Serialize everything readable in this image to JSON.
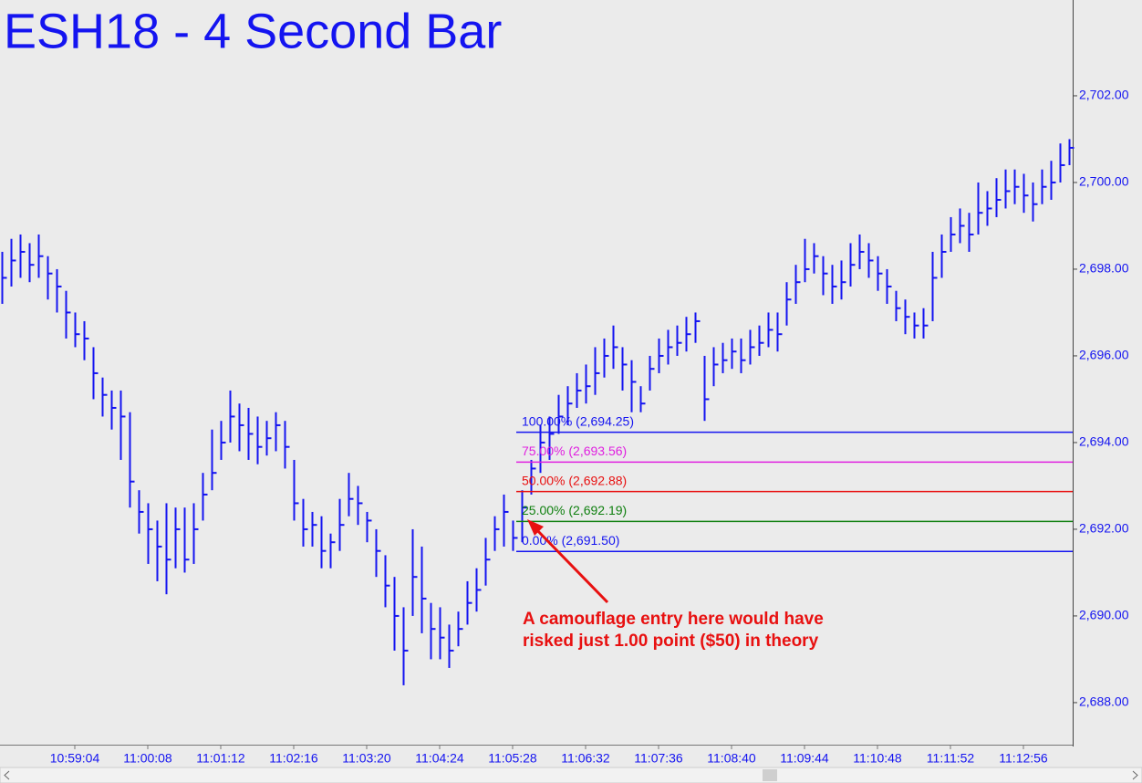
{
  "chart_data": {
    "type": "hlc",
    "title": "ESH18 - 4 Second Bar",
    "color": "#1414f0",
    "categories": [
      null,
      null,
      null,
      null,
      null,
      null,
      null,
      null,
      "10:59:04",
      null,
      null,
      null,
      null,
      null,
      null,
      null,
      "11:00:08",
      null,
      null,
      null,
      null,
      null,
      null,
      null,
      "11:01:12",
      null,
      null,
      null,
      null,
      null,
      null,
      null,
      "11:02:16",
      null,
      null,
      null,
      null,
      null,
      null,
      null,
      "11:03:20",
      null,
      null,
      null,
      null,
      null,
      null,
      null,
      "11:04:24",
      null,
      null,
      null,
      null,
      null,
      null,
      null,
      "11:05:28",
      null,
      null,
      null,
      null,
      null,
      null,
      null,
      "11:06:32",
      null,
      null,
      null,
      null,
      null,
      null,
      null,
      "11:07:36",
      null,
      null,
      null,
      null,
      null,
      null,
      null,
      "11:08:40",
      null,
      null,
      null,
      null,
      null,
      null,
      null,
      "11:09:44",
      null,
      null,
      null,
      null,
      null,
      null,
      null,
      "11:10:48",
      null,
      null,
      null,
      null,
      null,
      null,
      null,
      "11:11:52",
      null,
      null,
      null,
      null,
      null,
      null,
      null,
      "11:12:56",
      null,
      null,
      null,
      null,
      null
    ],
    "high": [
      2698.4,
      2698.7,
      2698.8,
      2698.6,
      2698.8,
      2698.3,
      2698.0,
      2697.5,
      2697.0,
      2696.8,
      2696.2,
      2695.5,
      2695.2,
      2695.2,
      2694.7,
      2692.9,
      2692.6,
      2692.2,
      2692.6,
      2692.5,
      2692.5,
      2692.6,
      2693.3,
      2694.3,
      2694.5,
      2695.2,
      2694.9,
      2694.8,
      2694.6,
      2694.5,
      2694.7,
      2694.5,
      2693.6,
      2692.7,
      2692.4,
      2692.3,
      2691.9,
      2692.7,
      2693.3,
      2693.0,
      2692.4,
      2692.0,
      2691.4,
      2690.9,
      2690.2,
      2692.0,
      2691.6,
      2690.3,
      2690.2,
      2689.8,
      2690.1,
      2690.8,
      2691.1,
      2691.8,
      2692.3,
      2692.8,
      2692.2,
      2692.9,
      2693.6,
      2694.4,
      2694.6,
      2695.1,
      2695.3,
      2695.6,
      2695.8,
      2696.2,
      2696.4,
      2696.7,
      2696.2,
      2695.9,
      2695.3,
      2696.0,
      2696.4,
      2696.6,
      2696.7,
      2696.9,
      2697.0,
      2696.0,
      2696.2,
      2696.3,
      2696.4,
      2696.4,
      2696.6,
      2696.7,
      2697.0,
      2697.0,
      2697.7,
      2698.1,
      2698.7,
      2698.6,
      2698.3,
      2698.1,
      2698.2,
      2698.6,
      2698.8,
      2698.6,
      2698.3,
      2698.0,
      2697.5,
      2697.3,
      2697.0,
      2697.1,
      2698.4,
      2698.8,
      2699.2,
      2699.4,
      2699.3,
      2700.0,
      2699.8,
      2700.1,
      2700.3,
      2700.3,
      2700.2,
      2700.0,
      2700.3,
      2700.5,
      2700.9,
      2701.0
    ],
    "low": [
      2697.2,
      2697.6,
      2697.8,
      2697.7,
      2697.8,
      2697.3,
      2697.0,
      2696.4,
      2696.2,
      2695.9,
      2695.0,
      2694.6,
      2694.3,
      2693.6,
      2692.5,
      2691.9,
      2691.2,
      2690.8,
      2690.5,
      2691.1,
      2691.0,
      2691.2,
      2692.2,
      2692.9,
      2693.6,
      2694.0,
      2693.8,
      2693.6,
      2693.5,
      2693.7,
      2693.8,
      2693.4,
      2692.2,
      2691.6,
      2691.6,
      2691.1,
      2691.1,
      2691.5,
      2692.3,
      2692.1,
      2691.7,
      2690.9,
      2690.2,
      2689.2,
      2688.4,
      2690.0,
      2689.6,
      2689.0,
      2689.0,
      2688.8,
      2689.3,
      2689.8,
      2690.1,
      2690.7,
      2691.5,
      2691.6,
      2691.5,
      2691.7,
      2692.8,
      2693.3,
      2693.6,
      2694.2,
      2694.4,
      2694.8,
      2694.9,
      2695.1,
      2695.5,
      2695.7,
      2695.2,
      2694.7,
      2694.7,
      2695.2,
      2695.6,
      2695.8,
      2696.0,
      2696.1,
      2696.3,
      2694.5,
      2695.3,
      2695.6,
      2695.7,
      2695.6,
      2695.8,
      2696.0,
      2696.2,
      2696.1,
      2696.7,
      2697.2,
      2697.7,
      2697.9,
      2697.4,
      2697.2,
      2697.3,
      2697.6,
      2698.0,
      2697.8,
      2697.5,
      2697.2,
      2696.8,
      2696.5,
      2696.4,
      2696.4,
      2696.8,
      2697.8,
      2698.4,
      2698.6,
      2698.4,
      2698.8,
      2699.0,
      2699.2,
      2699.4,
      2699.5,
      2699.3,
      2699.1,
      2699.5,
      2699.6,
      2700.0,
      2700.4
    ],
    "close": [
      2697.8,
      2698.2,
      2698.4,
      2698.1,
      2698.3,
      2697.9,
      2697.6,
      2697.0,
      2696.5,
      2696.4,
      2695.6,
      2695.1,
      2694.8,
      2694.6,
      2693.1,
      2692.4,
      2692.0,
      2691.6,
      2691.3,
      2692.0,
      2691.3,
      2692.0,
      2692.8,
      2693.3,
      2694.0,
      2694.6,
      2694.4,
      2694.2,
      2693.9,
      2694.1,
      2694.4,
      2693.9,
      2692.6,
      2692.0,
      2692.1,
      2691.5,
      2691.7,
      2692.1,
      2692.7,
      2692.6,
      2692.2,
      2691.5,
      2690.7,
      2690.0,
      2689.2,
      2690.9,
      2690.4,
      2689.7,
      2689.5,
      2689.2,
      2689.7,
      2690.3,
      2690.6,
      2691.3,
      2692.0,
      2692.4,
      2691.8,
      2692.5,
      2693.4,
      2694.0,
      2694.2,
      2694.6,
      2694.9,
      2695.2,
      2695.3,
      2695.6,
      2696.0,
      2696.2,
      2695.8,
      2695.4,
      2694.9,
      2695.7,
      2696.0,
      2696.2,
      2696.3,
      2696.5,
      2696.8,
      2695.0,
      2695.8,
      2695.9,
      2696.1,
      2695.9,
      2696.2,
      2696.3,
      2696.6,
      2696.5,
      2697.3,
      2697.7,
      2698.0,
      2698.3,
      2697.9,
      2697.6,
      2697.7,
      2698.1,
      2698.4,
      2698.2,
      2697.9,
      2697.6,
      2697.1,
      2696.9,
      2696.7,
      2696.7,
      2697.8,
      2698.4,
      2698.8,
      2699.0,
      2698.8,
      2699.3,
      2699.4,
      2699.6,
      2699.8,
      2699.9,
      2699.7,
      2699.5,
      2699.9,
      2700.0,
      2700.4,
      2700.8
    ],
    "ylim": [
      2687.03,
      2704.21
    ],
    "yticks": [
      {
        "value": 2688,
        "label": "2,688.00"
      },
      {
        "value": 2690,
        "label": "2,690.00"
      },
      {
        "value": 2692,
        "label": "2,692.00"
      },
      {
        "value": 2694,
        "label": "2,694.00"
      },
      {
        "value": 2696,
        "label": "2,696.00"
      },
      {
        "value": 2698,
        "label": "2,698.00"
      },
      {
        "value": 2700,
        "label": "2,700.00"
      },
      {
        "value": 2702,
        "label": "2,702.00"
      }
    ],
    "levels": [
      {
        "value": 2694.25,
        "label": "100.00% (2,694.25)",
        "color": "#1414f0"
      },
      {
        "value": 2693.56,
        "label": "75.00% (2,693.56)",
        "color": "#e020e0"
      },
      {
        "value": 2692.88,
        "label": "50.00% (2,692.88)",
        "color": "#e81010"
      },
      {
        "value": 2692.19,
        "label": "25.00% (2,692.19)",
        "color": "#108010"
      },
      {
        "value": 2691.5,
        "label": "0.00% (2,691.50)",
        "color": "#1414f0"
      }
    ],
    "annotation": [
      "A camouflage entry here would have",
      "risked just 1.00 point ($50) in theory"
    ]
  }
}
